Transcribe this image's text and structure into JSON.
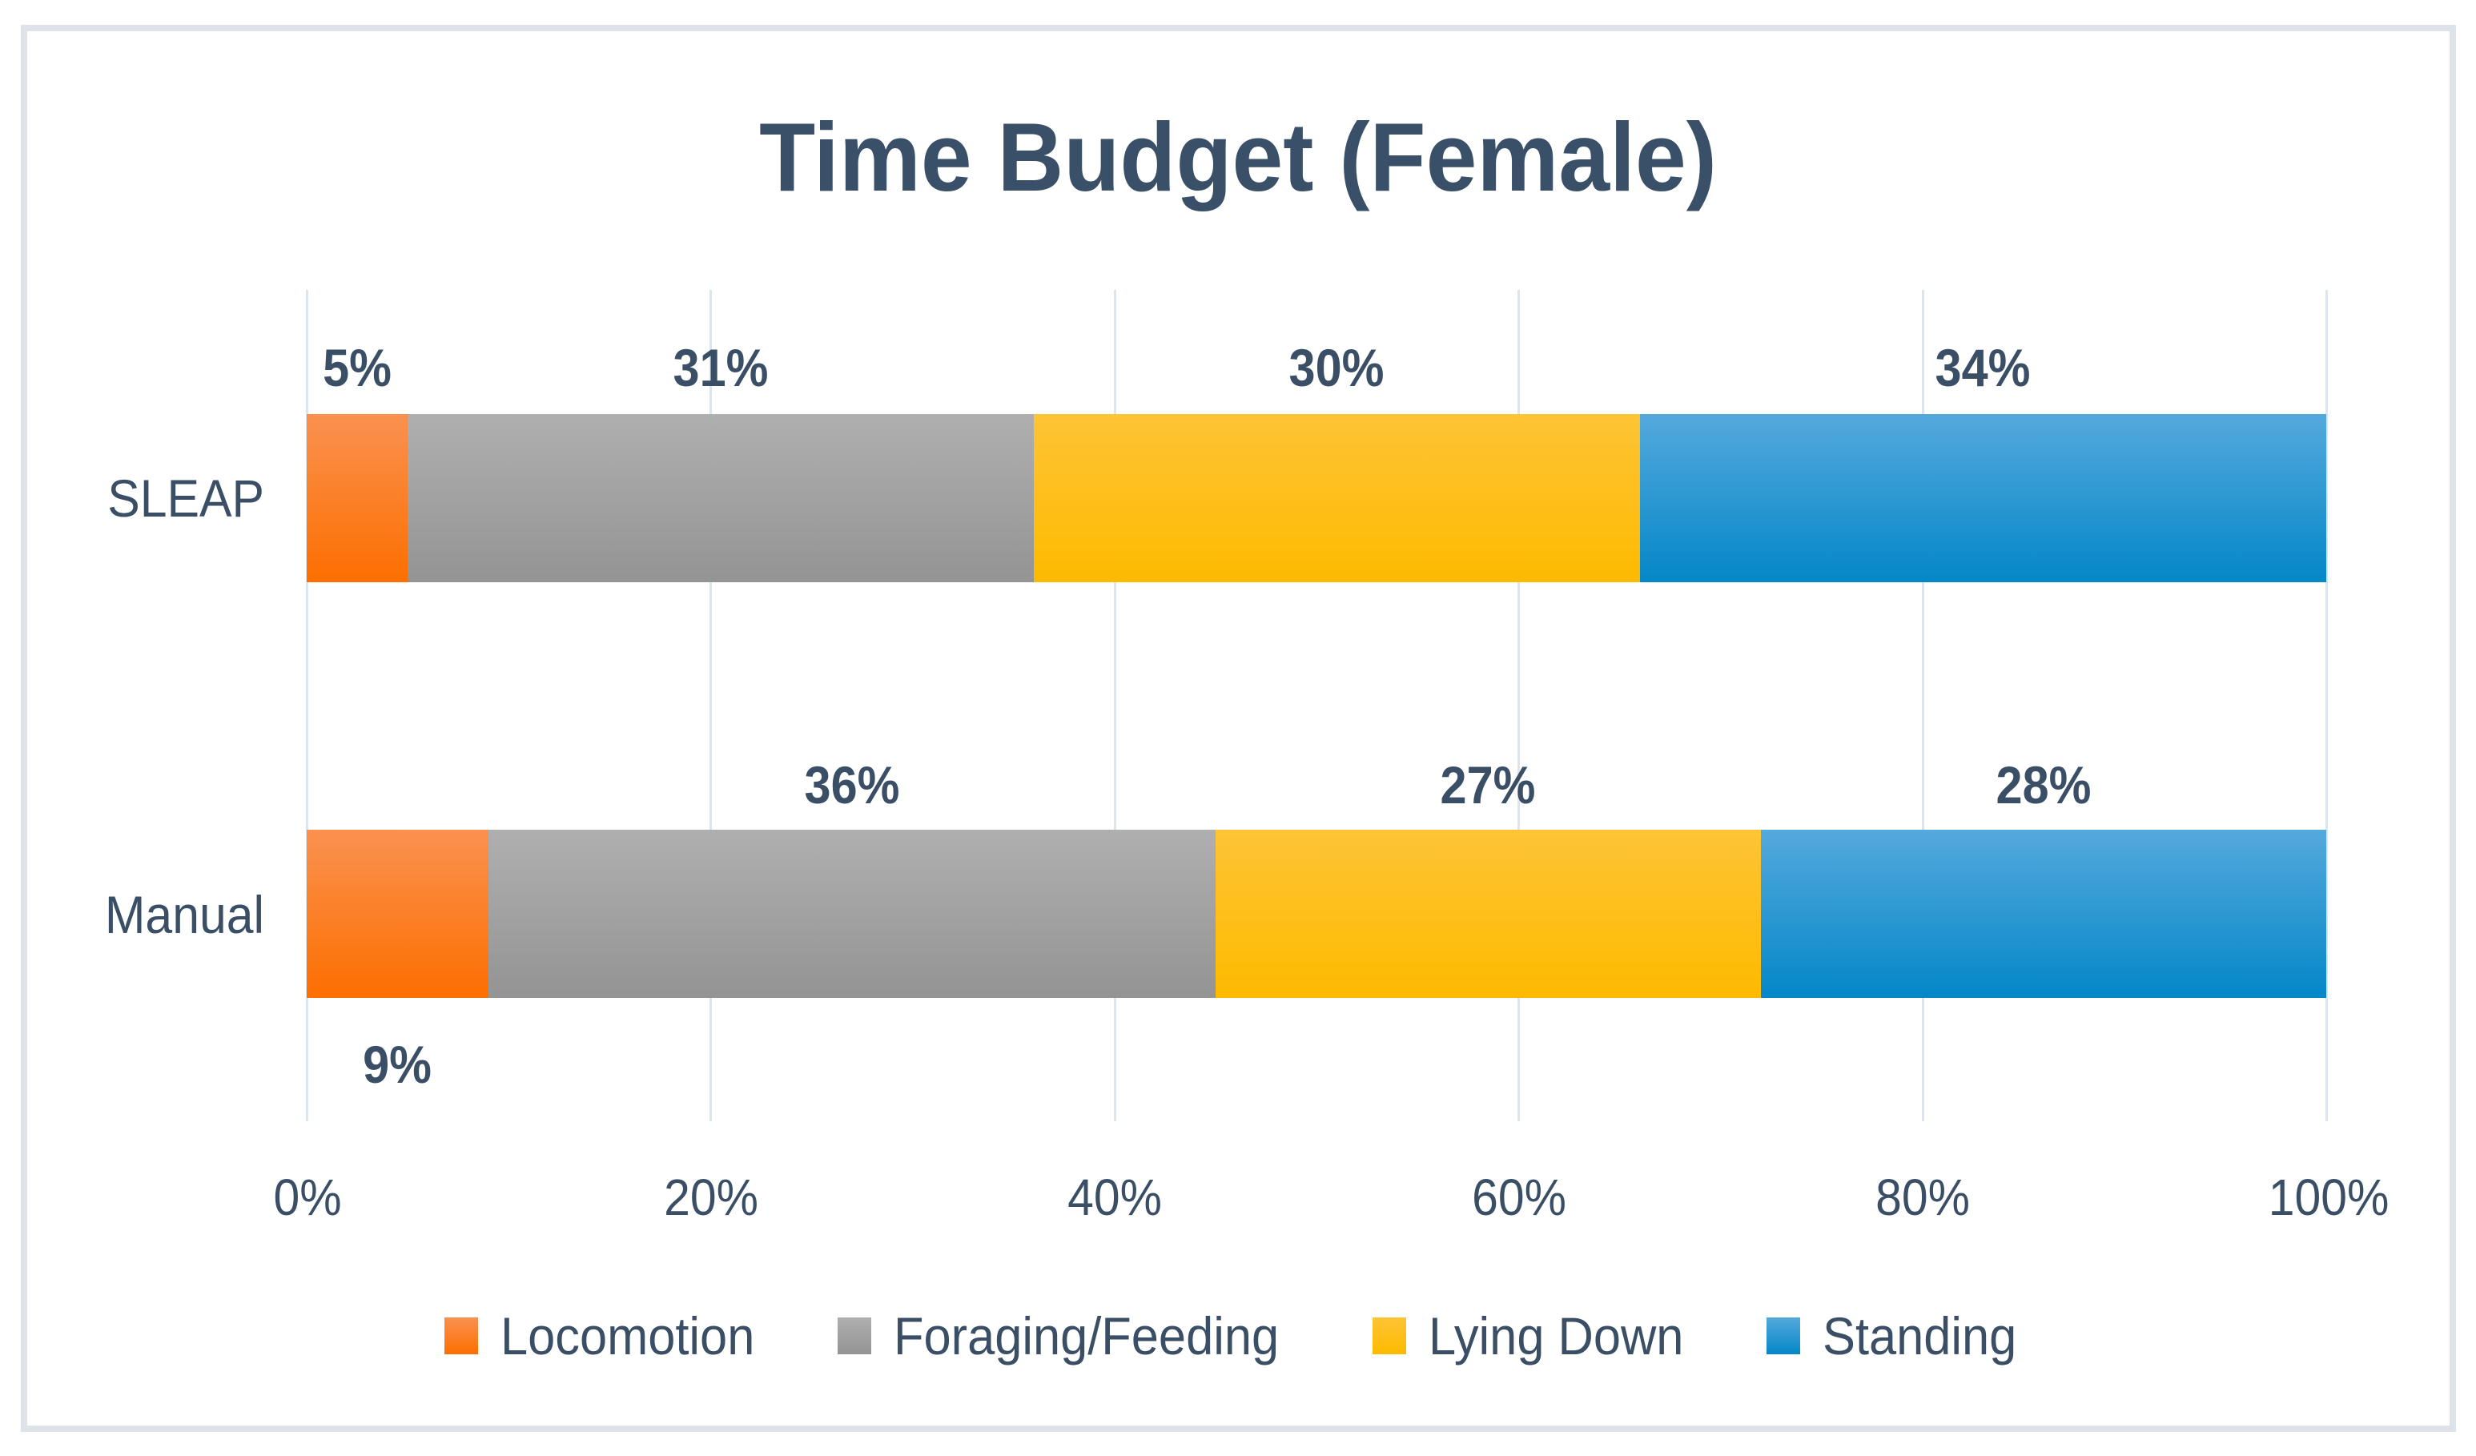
{
  "chart_data": {
    "type": "bar",
    "orientation": "horizontal",
    "stacked": true,
    "title": "Time Budget (Female)",
    "categories": [
      "SLEAP",
      "Manual"
    ],
    "series": [
      {
        "name": "Locomotion",
        "values": [
          5,
          9
        ],
        "color_top": "#fa9150",
        "color_bottom": "#fd6f00"
      },
      {
        "name": "Foraging/Feeding",
        "values": [
          31,
          36
        ],
        "color_top": "#afafaf",
        "color_bottom": "#949494"
      },
      {
        "name": "Lying Down",
        "values": [
          30,
          27
        ],
        "color_top": "#fdc435",
        "color_bottom": "#feba00"
      },
      {
        "name": "Standing",
        "values": [
          34,
          28
        ],
        "color_top": "#54a9dc",
        "color_bottom": "#0487c8"
      }
    ],
    "data_labels": {
      "format": "{value}%",
      "texts": [
        [
          "5%",
          "31%",
          "30%",
          "34%"
        ],
        [
          "9%",
          "36%",
          "27%",
          "28%"
        ]
      ]
    },
    "x_ticks": [
      "0%",
      "20%",
      "40%",
      "60%",
      "80%",
      "100%"
    ],
    "xlim": [
      0,
      100
    ],
    "legend_position": "bottom",
    "gridlines": "vertical"
  },
  "styles": {
    "text_color": "#3a4f66",
    "title_color": "#3a5068",
    "gridline_color": "#dce4ee",
    "frame_border_color": "#dee3ea",
    "background": "#ffffff"
  }
}
